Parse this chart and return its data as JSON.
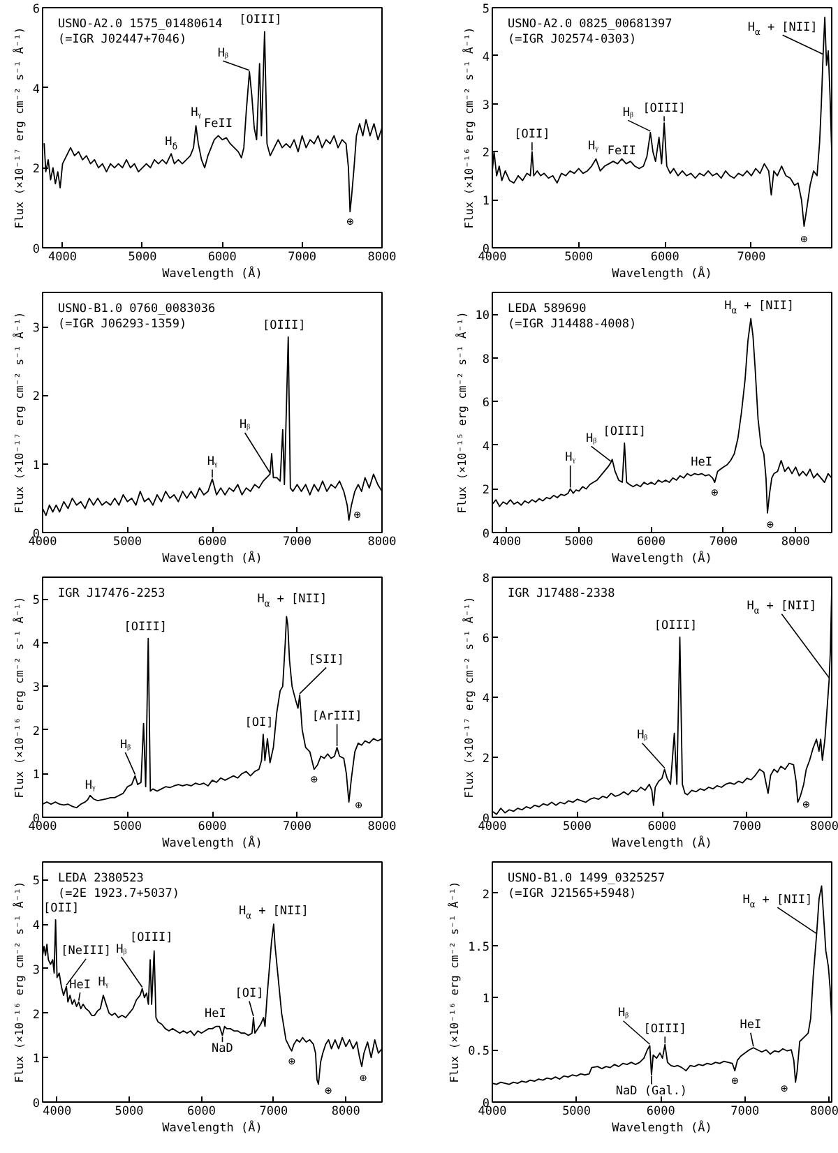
{
  "chart_data": [
    {
      "type": "line",
      "title": "USNO-A2.0 1575_01480614",
      "subtitle": "(=IGR J02447+7046)",
      "xlabel": "Wavelength (Å)",
      "ylabel": "Flux (×10⁻¹⁷ erg cm⁻² s⁻¹ Å⁻¹)",
      "xlim": [
        3750,
        8000
      ],
      "ylim": [
        0,
        6
      ],
      "xticks": [
        4000,
        5000,
        6000,
        7000,
        8000
      ],
      "yticks": [
        0,
        2,
        4,
        6
      ],
      "x": [
        3770,
        3790,
        3820,
        3850,
        3880,
        3910,
        3940,
        3970,
        4000,
        4050,
        4100,
        4150,
        4200,
        4250,
        4300,
        4350,
        4400,
        4450,
        4500,
        4550,
        4600,
        4650,
        4700,
        4750,
        4800,
        4850,
        4900,
        4950,
        5000,
        5050,
        5100,
        5150,
        5200,
        5250,
        5300,
        5360,
        5400,
        5450,
        5500,
        5550,
        5600,
        5640,
        5670,
        5700,
        5740,
        5780,
        5820,
        5860,
        5900,
        5950,
        6000,
        6050,
        6100,
        6150,
        6200,
        6240,
        6270,
        6300,
        6340,
        6370,
        6400,
        6430,
        6467,
        6490,
        6530,
        6560,
        6600,
        6650,
        6700,
        6750,
        6800,
        6850,
        6900,
        6950,
        7000,
        7050,
        7100,
        7150,
        7200,
        7250,
        7300,
        7350,
        7400,
        7450,
        7500,
        7550,
        7580,
        7600,
        7620,
        7650,
        7680,
        7720,
        7760,
        7800,
        7850,
        7900,
        7950,
        8000
      ],
      "series": [
        {
          "color": "#000000",
          "values": [
            2.6,
            1.9,
            2.2,
            1.7,
            2.0,
            1.6,
            1.9,
            1.5,
            2.1,
            2.3,
            2.5,
            2.3,
            2.4,
            2.2,
            2.3,
            2.1,
            2.2,
            2.0,
            2.1,
            1.9,
            2.1,
            2.0,
            2.1,
            2.0,
            2.2,
            2.0,
            2.1,
            1.9,
            2.0,
            2.1,
            2.0,
            2.2,
            2.1,
            2.2,
            2.1,
            2.35,
            2.1,
            2.2,
            2.1,
            2.2,
            2.3,
            2.5,
            3.05,
            2.6,
            2.2,
            2.0,
            2.3,
            2.5,
            2.7,
            2.8,
            2.7,
            2.75,
            2.6,
            2.5,
            2.4,
            2.25,
            2.5,
            3.4,
            4.4,
            3.8,
            3.0,
            2.7,
            4.6,
            2.8,
            5.4,
            2.6,
            2.3,
            2.5,
            2.7,
            2.5,
            2.6,
            2.5,
            2.7,
            2.4,
            2.8,
            2.5,
            2.7,
            2.6,
            2.8,
            2.5,
            2.7,
            2.6,
            2.8,
            2.5,
            2.7,
            2.6,
            2.0,
            0.9,
            1.3,
            2.0,
            2.8,
            3.1,
            2.8,
            3.2,
            2.8,
            3.1,
            2.7,
            3.0
          ]
        }
      ],
      "annotations": [
        {
          "text": "H$_{δ}$",
          "x": 5360,
          "y": 2.35
        },
        {
          "text": "Hᵧ",
          "x": 5670,
          "y": 3.05
        },
        {
          "text": "FeII",
          "x": 5950,
          "y": 2.8
        },
        {
          "text": "Hᵦ",
          "x": 6340,
          "y": 4.4
        },
        {
          "text": "[OIII]",
          "x": 6530,
          "y": 5.4
        },
        {
          "text": "⊕",
          "x": 7600,
          "y": 0.9
        }
      ]
    },
    {
      "type": "line",
      "title": "USNO-A2.0 0825_00681397",
      "subtitle": "(=IGR J02574-0303)",
      "xlabel": "Wavelength (Å)",
      "ylabel": "Flux (×10⁻¹⁶ erg cm⁻² s⁻¹ Å⁻¹)",
      "xlim": [
        4000,
        7930
      ],
      "ylim": [
        0,
        5
      ],
      "xticks": [
        4000,
        5000,
        6000,
        7000
      ],
      "yticks": [
        0,
        1,
        2,
        3,
        4,
        5
      ],
      "x": [
        4000,
        4020,
        4050,
        4080,
        4110,
        4150,
        4200,
        4250,
        4300,
        4350,
        4400,
        4440,
        4460,
        4480,
        4520,
        4560,
        4600,
        4650,
        4700,
        4750,
        4800,
        4850,
        4900,
        4950,
        5000,
        5050,
        5100,
        5150,
        5200,
        5250,
        5300,
        5350,
        5400,
        5450,
        5500,
        5550,
        5600,
        5650,
        5700,
        5750,
        5790,
        5830,
        5860,
        5890,
        5930,
        5960,
        5990,
        6020,
        6060,
        6100,
        6150,
        6200,
        6250,
        6300,
        6350,
        6400,
        6450,
        6500,
        6550,
        6600,
        6650,
        6700,
        6750,
        6800,
        6850,
        6900,
        6950,
        7000,
        7050,
        7100,
        7150,
        7200,
        7230,
        7260,
        7300,
        7350,
        7400,
        7450,
        7500,
        7540,
        7580,
        7610,
        7640,
        7680,
        7720,
        7760,
        7790,
        7810,
        7830,
        7850,
        7870,
        7890,
        7910,
        7930
      ],
      "series": [
        {
          "color": "#000000",
          "values": [
            1.6,
            2.0,
            1.5,
            1.7,
            1.4,
            1.6,
            1.4,
            1.35,
            1.5,
            1.4,
            1.55,
            1.5,
            2.0,
            1.5,
            1.6,
            1.5,
            1.55,
            1.45,
            1.5,
            1.35,
            1.55,
            1.5,
            1.6,
            1.55,
            1.65,
            1.55,
            1.6,
            1.7,
            1.85,
            1.6,
            1.7,
            1.75,
            1.8,
            1.75,
            1.85,
            1.75,
            1.8,
            1.7,
            1.65,
            1.7,
            1.9,
            2.4,
            2.0,
            1.8,
            2.3,
            1.75,
            2.6,
            1.7,
            1.55,
            1.65,
            1.5,
            1.6,
            1.5,
            1.55,
            1.45,
            1.55,
            1.5,
            1.6,
            1.5,
            1.55,
            1.45,
            1.6,
            1.5,
            1.45,
            1.55,
            1.5,
            1.6,
            1.5,
            1.65,
            1.55,
            1.75,
            1.6,
            1.1,
            1.6,
            1.5,
            1.7,
            1.5,
            1.45,
            1.3,
            1.35,
            1.0,
            0.45,
            0.8,
            1.3,
            1.6,
            1.5,
            2.2,
            3.0,
            4.0,
            4.8,
            3.8,
            4.1,
            3.2,
            2.0
          ]
        }
      ],
      "annotations": [
        {
          "text": "[OII]",
          "x": 4460,
          "y": 2.0
        },
        {
          "text": "Hᵧ",
          "x": 5200,
          "y": 1.85
        },
        {
          "text": "FeII",
          "x": 5450,
          "y": 1.75
        },
        {
          "text": "Hᵦ",
          "x": 5830,
          "y": 2.4
        },
        {
          "text": "[OIII]",
          "x": 5990,
          "y": 2.6
        },
        {
          "text": "H$_{α}$ + [NII]",
          "x": 7830,
          "y": 4.0
        },
        {
          "text": "⊕",
          "x": 7610,
          "y": 0.45
        }
      ]
    },
    {
      "type": "line",
      "title": "USNO-B1.0 0760_0083036",
      "subtitle": "(=IGR J06293-1359)",
      "xlabel": "Wavelength (Å)",
      "ylabel": "Flux (×10⁻¹⁷ erg cm⁻² s⁻¹ Å⁻¹)",
      "xlim": [
        4000,
        8000
      ],
      "ylim": [
        0,
        3.5
      ],
      "xticks": [
        4000,
        5000,
        6000,
        7000,
        8000
      ],
      "yticks": [
        0,
        1,
        2,
        3
      ],
      "x": [
        4000,
        4040,
        4080,
        4120,
        4160,
        4200,
        4250,
        4300,
        4350,
        4400,
        4450,
        4500,
        4550,
        4600,
        4650,
        4700,
        4750,
        4800,
        4850,
        4900,
        4950,
        5000,
        5050,
        5100,
        5150,
        5200,
        5250,
        5300,
        5350,
        5400,
        5450,
        5500,
        5550,
        5600,
        5650,
        5700,
        5750,
        5800,
        5850,
        5900,
        5950,
        6000,
        6050,
        6100,
        6150,
        6200,
        6250,
        6300,
        6350,
        6400,
        6450,
        6500,
        6550,
        6600,
        6640,
        6680,
        6700,
        6720,
        6760,
        6800,
        6830,
        6850,
        6895,
        6920,
        6950,
        7000,
        7050,
        7100,
        7150,
        7200,
        7250,
        7300,
        7350,
        7400,
        7450,
        7500,
        7550,
        7590,
        7610,
        7640,
        7680,
        7720,
        7760,
        7800,
        7850,
        7900,
        7950,
        8000
      ],
      "series": [
        {
          "color": "#000000",
          "values": [
            0.35,
            0.25,
            0.4,
            0.3,
            0.4,
            0.3,
            0.45,
            0.35,
            0.5,
            0.4,
            0.45,
            0.35,
            0.5,
            0.4,
            0.5,
            0.4,
            0.45,
            0.4,
            0.5,
            0.4,
            0.55,
            0.45,
            0.5,
            0.4,
            0.6,
            0.45,
            0.5,
            0.4,
            0.55,
            0.45,
            0.6,
            0.5,
            0.55,
            0.45,
            0.6,
            0.5,
            0.6,
            0.5,
            0.65,
            0.55,
            0.6,
            0.78,
            0.55,
            0.65,
            0.55,
            0.65,
            0.6,
            0.7,
            0.55,
            0.65,
            0.6,
            0.7,
            0.65,
            0.75,
            0.8,
            0.85,
            1.15,
            0.8,
            0.8,
            0.75,
            1.5,
            0.7,
            2.85,
            0.65,
            0.6,
            0.7,
            0.6,
            0.7,
            0.55,
            0.7,
            0.6,
            0.75,
            0.6,
            0.7,
            0.65,
            0.75,
            0.6,
            0.4,
            0.18,
            0.4,
            0.6,
            0.7,
            0.6,
            0.8,
            0.65,
            0.85,
            0.7,
            0.6
          ]
        }
      ],
      "annotations": [
        {
          "text": "Hᵧ",
          "x": 6000,
          "y": 0.78
        },
        {
          "text": "Hᵦ",
          "x": 6680,
          "y": 0.85
        },
        {
          "text": "[OIII]",
          "x": 6895,
          "y": 2.85
        },
        {
          "text": "⊕",
          "x": 7610,
          "y": 0.18
        }
      ]
    },
    {
      "type": "line",
      "title": "LEDA 589690",
      "subtitle": "(=IGR J14488-4008)",
      "xlabel": "Wavelength (Å)",
      "ylabel": "Flux (×10⁻¹⁵ erg cm⁻² s⁻¹ Å⁻¹)",
      "xlim": [
        3800,
        8500
      ],
      "ylim": [
        0,
        11
      ],
      "xticks": [
        4000,
        5000,
        6000,
        7000,
        8000
      ],
      "yticks": [
        0,
        2,
        4,
        6,
        8,
        10
      ],
      "x": [
        3800,
        3850,
        3900,
        3950,
        4000,
        4050,
        4100,
        4150,
        4200,
        4250,
        4300,
        4350,
        4400,
        4450,
        4500,
        4550,
        4600,
        4650,
        4700,
        4750,
        4800,
        4850,
        4880,
        4920,
        4960,
        5000,
        5050,
        5100,
        5150,
        5200,
        5250,
        5300,
        5350,
        5400,
        5440,
        5460,
        5500,
        5550,
        5600,
        5630,
        5660,
        5700,
        5750,
        5800,
        5850,
        5900,
        5950,
        6000,
        6050,
        6100,
        6150,
        6200,
        6250,
        6300,
        6350,
        6400,
        6450,
        6500,
        6550,
        6600,
        6650,
        6700,
        6750,
        6800,
        6850,
        6880,
        6920,
        6960,
        7000,
        7050,
        7100,
        7150,
        7200,
        7250,
        7300,
        7340,
        7380,
        7410,
        7440,
        7480,
        7520,
        7560,
        7590,
        7610,
        7640,
        7670,
        7700,
        7750,
        7800,
        7850,
        7900,
        7950,
        8000,
        8050,
        8100,
        8150,
        8200,
        8250,
        8300,
        8350,
        8400,
        8450,
        8500
      ],
      "series": [
        {
          "color": "#000000",
          "values": [
            1.3,
            1.5,
            1.2,
            1.4,
            1.3,
            1.5,
            1.3,
            1.4,
            1.25,
            1.45,
            1.35,
            1.5,
            1.4,
            1.55,
            1.45,
            1.6,
            1.55,
            1.7,
            1.6,
            1.75,
            1.7,
            1.8,
            2.0,
            1.8,
            1.95,
            1.9,
            2.1,
            2.0,
            2.2,
            2.3,
            2.4,
            2.6,
            2.8,
            3.0,
            3.2,
            3.35,
            2.8,
            2.4,
            2.3,
            4.1,
            2.3,
            2.2,
            2.1,
            2.2,
            2.1,
            2.3,
            2.2,
            2.3,
            2.2,
            2.4,
            2.3,
            2.4,
            2.3,
            2.5,
            2.4,
            2.6,
            2.5,
            2.7,
            2.6,
            2.7,
            2.65,
            2.7,
            2.6,
            2.65,
            2.5,
            2.3,
            2.8,
            2.9,
            3.0,
            3.1,
            3.3,
            3.6,
            4.3,
            5.5,
            7.0,
            8.8,
            9.8,
            9.0,
            7.5,
            5.2,
            4.0,
            3.6,
            2.5,
            0.9,
            1.8,
            2.5,
            2.7,
            2.8,
            3.3,
            2.8,
            3.0,
            2.7,
            3.0,
            2.6,
            2.8,
            2.6,
            2.9,
            2.5,
            2.7,
            2.5,
            2.3,
            2.7,
            2.5
          ]
        }
      ],
      "annotations": [
        {
          "text": "Hᵧ",
          "x": 4880,
          "y": 2.0
        },
        {
          "text": "Hᵦ",
          "x": 5440,
          "y": 3.2
        },
        {
          "text": "[OIII]",
          "x": 5630,
          "y": 4.1
        },
        {
          "text": "HeI",
          "x": 6600,
          "y": 2.7
        },
        {
          "text": "⊕",
          "x": 6880,
          "y": 2.3
        },
        {
          "text": "H$_{α}$ + [NII]",
          "x": 7380,
          "y": 9.8
        },
        {
          "text": "⊕",
          "x": 7610,
          "y": 0.9
        }
      ]
    },
    {
      "type": "line",
      "title": "IGR J17476-2253",
      "xlabel": "Wavelength (Å)",
      "ylabel": "Flux (×10⁻¹⁶ erg cm⁻² s⁻¹ Å⁻¹)",
      "xlim": [
        4000,
        8000
      ],
      "ylim": [
        0,
        5.5
      ],
      "xticks": [
        4000,
        5000,
        6000,
        7000,
        8000
      ],
      "yticks": [
        0,
        1,
        2,
        3,
        4,
        5
      ],
      "x": [
        4000,
        4050,
        4100,
        4150,
        4200,
        4250,
        4300,
        4350,
        4400,
        4450,
        4500,
        4530,
        4560,
        4600,
        4650,
        4700,
        4750,
        4800,
        4850,
        4900,
        4950,
        5000,
        5050,
        5090,
        5120,
        5160,
        5190,
        5215,
        5245,
        5270,
        5300,
        5350,
        5400,
        5450,
        5500,
        5550,
        5600,
        5650,
        5700,
        5750,
        5800,
        5850,
        5900,
        5950,
        6000,
        6050,
        6100,
        6150,
        6200,
        6250,
        6300,
        6350,
        6400,
        6450,
        6500,
        6550,
        6580,
        6600,
        6620,
        6650,
        6680,
        6720,
        6760,
        6800,
        6830,
        6860,
        6875,
        6890,
        6910,
        6940,
        6980,
        7010,
        7030,
        7060,
        7100,
        7150,
        7200,
        7240,
        7280,
        7320,
        7360,
        7400,
        7440,
        7470,
        7500,
        7550,
        7580,
        7610,
        7640,
        7680,
        7720,
        7760,
        7800,
        7850,
        7900,
        7950,
        8000
      ],
      "series": [
        {
          "color": "#000000",
          "values": [
            0.3,
            0.35,
            0.3,
            0.35,
            0.3,
            0.28,
            0.3,
            0.25,
            0.22,
            0.3,
            0.35,
            0.4,
            0.5,
            0.42,
            0.38,
            0.4,
            0.42,
            0.45,
            0.45,
            0.5,
            0.55,
            0.7,
            0.75,
            0.95,
            0.75,
            0.8,
            2.15,
            0.7,
            4.1,
            0.6,
            0.65,
            0.6,
            0.65,
            0.7,
            0.68,
            0.72,
            0.75,
            0.72,
            0.75,
            0.72,
            0.78,
            0.75,
            0.78,
            0.72,
            0.85,
            0.8,
            0.9,
            0.85,
            0.9,
            0.95,
            0.9,
            1.0,
            1.05,
            0.95,
            1.05,
            1.1,
            1.3,
            1.9,
            1.3,
            1.8,
            1.25,
            1.6,
            2.4,
            2.9,
            3.0,
            4.0,
            4.6,
            4.4,
            3.6,
            3.0,
            2.7,
            2.5,
            2.8,
            2.0,
            1.6,
            1.5,
            1.1,
            1.2,
            1.4,
            1.35,
            1.45,
            1.35,
            1.4,
            1.6,
            1.4,
            1.35,
            1.0,
            0.35,
            0.9,
            1.5,
            1.7,
            1.65,
            1.75,
            1.7,
            1.8,
            1.75,
            1.8
          ]
        }
      ],
      "annotations": [
        {
          "text": "Hᵧ",
          "x": 4560,
          "y": 0.5
        },
        {
          "text": "Hᵦ",
          "x": 5090,
          "y": 0.95
        },
        {
          "text": "[OIII]",
          "x": 5245,
          "y": 4.1
        },
        {
          "text": "[OI]",
          "x": 6600,
          "y": 1.9
        },
        {
          "text": "H$_{α}$ + [NII]",
          "x": 6875,
          "y": 4.6
        },
        {
          "text": "[SII]",
          "x": 7030,
          "y": 2.8
        },
        {
          "text": "⊕",
          "x": 7200,
          "y": 1.1
        },
        {
          "text": "[ArIII]",
          "x": 7470,
          "y": 1.6
        },
        {
          "text": "⊕",
          "x": 7610,
          "y": 0.35
        }
      ]
    },
    {
      "type": "line",
      "title": "IGR J17488-2338",
      "xlabel": "Wavelength (Å)",
      "ylabel": "Flux (×10⁻¹⁷ erg cm⁻² s⁻¹ Å⁻¹)",
      "xlim": [
        4000,
        8000
      ],
      "ylim": [
        0,
        8
      ],
      "xticks": [
        4000,
        5000,
        6000,
        7000,
        8000
      ],
      "yticks": [
        0,
        2,
        4,
        6,
        8
      ],
      "x": [
        4000,
        4050,
        4100,
        4150,
        4200,
        4250,
        4300,
        4350,
        4400,
        4450,
        4500,
        4550,
        4600,
        4650,
        4700,
        4750,
        4800,
        4850,
        4900,
        4950,
        5000,
        5050,
        5100,
        5150,
        5200,
        5250,
        5300,
        5350,
        5400,
        5450,
        5500,
        5550,
        5600,
        5650,
        5700,
        5750,
        5800,
        5850,
        5880,
        5900,
        5920,
        5960,
        6000,
        6030,
        6060,
        6100,
        6145,
        6175,
        6210,
        6240,
        6270,
        6300,
        6350,
        6400,
        6450,
        6500,
        6550,
        6600,
        6650,
        6700,
        6750,
        6800,
        6850,
        6900,
        6950,
        7000,
        7050,
        7100,
        7150,
        7200,
        7250,
        7280,
        7320,
        7360,
        7400,
        7450,
        7500,
        7550,
        7580,
        7600,
        7630,
        7670,
        7700,
        7740,
        7780,
        7820,
        7850,
        7870,
        7890,
        7920,
        7950,
        7970,
        7985,
        8000
      ],
      "series": [
        {
          "color": "#000000",
          "values": [
            0.2,
            0.1,
            0.3,
            0.15,
            0.25,
            0.2,
            0.3,
            0.25,
            0.35,
            0.3,
            0.4,
            0.35,
            0.45,
            0.4,
            0.5,
            0.4,
            0.5,
            0.45,
            0.55,
            0.5,
            0.6,
            0.55,
            0.5,
            0.6,
            0.65,
            0.6,
            0.7,
            0.65,
            0.8,
            0.7,
            0.75,
            0.85,
            0.75,
            0.9,
            0.85,
            1.0,
            0.9,
            1.1,
            0.9,
            0.4,
            1.0,
            1.2,
            1.3,
            1.6,
            1.3,
            1.1,
            2.8,
            1.1,
            6.0,
            1.1,
            0.8,
            0.75,
            0.9,
            0.85,
            0.95,
            0.9,
            1.0,
            0.95,
            1.05,
            1.0,
            1.1,
            1.15,
            1.1,
            1.2,
            1.15,
            1.3,
            1.25,
            1.4,
            1.6,
            1.5,
            0.8,
            1.4,
            1.6,
            1.5,
            1.7,
            1.6,
            1.8,
            1.75,
            1.2,
            0.5,
            0.7,
            1.1,
            1.6,
            1.9,
            2.3,
            2.6,
            2.2,
            2.6,
            1.9,
            2.6,
            3.8,
            4.6,
            5.6,
            7.6
          ]
        }
      ],
      "annotations": [
        {
          "text": "Hᵦ",
          "x": 6030,
          "y": 1.6
        },
        {
          "text": "[OIII]",
          "x": 6210,
          "y": 6.0
        },
        {
          "text": "H$_{α}$ + [NII]",
          "x": 7970,
          "y": 4.6
        },
        {
          "text": "⊕",
          "x": 7600,
          "y": 0.5
        }
      ]
    },
    {
      "type": "line",
      "title": "LEDA 2380523",
      "subtitle": "(=2E 1923.7+5037)",
      "xlabel": "Wavelength (Å)",
      "ylabel": "Flux (×10⁻¹⁶ erg cm⁻² s⁻¹ Å⁻¹)",
      "xlim": [
        3800,
        8500
      ],
      "ylim": [
        0,
        5.4
      ],
      "xticks": [
        4000,
        5000,
        6000,
        7000,
        8000
      ],
      "yticks": [
        0,
        1,
        2,
        3,
        4,
        5
      ],
      "x": [
        3800,
        3820,
        3840,
        3860,
        3880,
        3910,
        3940,
        3960,
        3980,
        4000,
        4030,
        4060,
        4090,
        4110,
        4130,
        4150,
        4180,
        4210,
        4240,
        4270,
        4300,
        4330,
        4360,
        4400,
        4440,
        4480,
        4520,
        4560,
        4600,
        4640,
        4680,
        4720,
        4760,
        4800,
        4850,
        4900,
        4950,
        5000,
        5050,
        5100,
        5150,
        5180,
        5210,
        5240,
        5265,
        5290,
        5310,
        5345,
        5370,
        5400,
        5450,
        5500,
        5550,
        5600,
        5650,
        5700,
        5750,
        5800,
        5850,
        5900,
        5950,
        6000,
        6050,
        6100,
        6150,
        6200,
        6250,
        6290,
        6320,
        6350,
        6400,
        6450,
        6500,
        6550,
        6600,
        6650,
        6700,
        6720,
        6740,
        6780,
        6820,
        6860,
        6880,
        6910,
        6940,
        6970,
        7000,
        7020,
        7050,
        7080,
        7110,
        7140,
        7170,
        7200,
        7230,
        7250,
        7280,
        7320,
        7360,
        7400,
        7450,
        7500,
        7550,
        7580,
        7600,
        7620,
        7650,
        7680,
        7720,
        7760,
        7800,
        7850,
        7900,
        7950,
        8000,
        8050,
        8100,
        8150,
        8190,
        8220,
        8250,
        8300,
        8350,
        8400,
        8450,
        8500
      ],
      "series": [
        {
          "color": "#000000",
          "values": [
            3.3,
            3.5,
            3.3,
            3.55,
            3.2,
            3.1,
            3.2,
            2.9,
            4.1,
            2.8,
            2.9,
            2.6,
            2.4,
            2.5,
            2.6,
            2.25,
            2.4,
            2.2,
            2.3,
            2.15,
            2.25,
            2.1,
            2.2,
            2.1,
            2.05,
            1.95,
            1.95,
            2.05,
            2.1,
            2.4,
            2.2,
            2.0,
            1.95,
            2.0,
            1.9,
            1.95,
            1.9,
            2.0,
            2.1,
            2.3,
            2.4,
            2.55,
            2.35,
            2.45,
            2.2,
            3.2,
            2.2,
            3.4,
            1.9,
            1.8,
            1.75,
            1.65,
            1.6,
            1.65,
            1.6,
            1.55,
            1.6,
            1.55,
            1.6,
            1.5,
            1.6,
            1.55,
            1.6,
            1.65,
            1.65,
            1.7,
            1.7,
            1.5,
            1.7,
            1.65,
            1.65,
            1.6,
            1.6,
            1.55,
            1.55,
            1.5,
            1.55,
            1.9,
            1.55,
            1.65,
            1.75,
            1.9,
            1.7,
            2.4,
            3.0,
            3.6,
            4.0,
            3.5,
            3.0,
            2.5,
            2.0,
            1.7,
            1.4,
            1.3,
            1.2,
            1.15,
            1.3,
            1.4,
            1.35,
            1.45,
            1.35,
            1.4,
            1.3,
            1.1,
            0.5,
            0.4,
            0.9,
            1.1,
            1.3,
            1.4,
            1.2,
            1.4,
            1.2,
            1.45,
            1.25,
            1.4,
            1.2,
            1.35,
            1.0,
            0.8,
            1.1,
            1.35,
            1.0,
            1.4,
            1.1,
            1.2
          ]
        }
      ],
      "annotations": [
        {
          "text": "[OII]",
          "x": 3980,
          "y": 4.1
        },
        {
          "text": "[NeIII]",
          "x": 4130,
          "y": 2.6
        },
        {
          "text": "HeI",
          "x": 4300,
          "y": 2.25
        },
        {
          "text": "Hᵧ",
          "x": 4640,
          "y": 2.4
        },
        {
          "text": "Hᵦ",
          "x": 5180,
          "y": 2.55
        },
        {
          "text": "[OIII]",
          "x": 5345,
          "y": 3.4
        },
        {
          "text": "HeI",
          "x": 6250,
          "y": 1.7
        },
        {
          "text": "NaD",
          "x": 6290,
          "y": 1.5
        },
        {
          "text": "[OI]",
          "x": 6720,
          "y": 1.9
        },
        {
          "text": "H$_{α}$ + [NII]",
          "x": 7000,
          "y": 4.0
        },
        {
          "text": "⊕",
          "x": 7250,
          "y": 1.15
        },
        {
          "text": "⊕",
          "x": 7620,
          "y": 0.4
        },
        {
          "text": "⊕",
          "x": 8220,
          "y": 0.8
        }
      ]
    },
    {
      "type": "line",
      "title": "USNO-B1.0 1499_0325257",
      "subtitle": "(=IGR J21565+5948)",
      "xlabel": "Wavelength (Å)",
      "ylabel": "Flux (×10⁻¹⁶ erg cm⁻² s⁻¹ Å⁻¹)",
      "xlim": [
        4000,
        8030
      ],
      "ylim": [
        0,
        2.3
      ],
      "xticks": [
        4000,
        5000,
        6000,
        7000,
        8000
      ],
      "yticks": [
        0,
        0.5,
        1,
        1.5,
        2
      ],
      "x": [
        4000,
        4050,
        4100,
        4150,
        4200,
        4250,
        4300,
        4350,
        4400,
        4450,
        4500,
        4550,
        4600,
        4650,
        4700,
        4750,
        4800,
        4850,
        4900,
        4950,
        5000,
        5050,
        5100,
        5150,
        5180,
        5250,
        5300,
        5350,
        5400,
        5450,
        5500,
        5550,
        5600,
        5650,
        5700,
        5750,
        5800,
        5840,
        5870,
        5890,
        5910,
        5950,
        5990,
        6020,
        6050,
        6080,
        6120,
        6160,
        6200,
        6250,
        6300,
        6350,
        6400,
        6450,
        6500,
        6550,
        6600,
        6650,
        6700,
        6750,
        6800,
        6850,
        6880,
        6910,
        6950,
        7000,
        7050,
        7100,
        7150,
        7200,
        7250,
        7300,
        7350,
        7400,
        7450,
        7500,
        7550,
        7580,
        7600,
        7620,
        7650,
        7700,
        7750,
        7780,
        7810,
        7850,
        7880,
        7910,
        7940,
        7960,
        7990,
        8010,
        8030
      ],
      "series": [
        {
          "color": "#000000",
          "values": [
            0.18,
            0.17,
            0.19,
            0.18,
            0.17,
            0.19,
            0.18,
            0.2,
            0.19,
            0.21,
            0.2,
            0.22,
            0.21,
            0.23,
            0.22,
            0.24,
            0.22,
            0.25,
            0.24,
            0.26,
            0.25,
            0.27,
            0.26,
            0.27,
            0.33,
            0.34,
            0.32,
            0.34,
            0.33,
            0.36,
            0.34,
            0.37,
            0.36,
            0.38,
            0.36,
            0.38,
            0.42,
            0.5,
            0.54,
            0.26,
            0.45,
            0.42,
            0.47,
            0.42,
            0.55,
            0.38,
            0.35,
            0.34,
            0.35,
            0.33,
            0.3,
            0.35,
            0.34,
            0.36,
            0.35,
            0.37,
            0.36,
            0.38,
            0.37,
            0.39,
            0.38,
            0.37,
            0.3,
            0.4,
            0.44,
            0.47,
            0.5,
            0.52,
            0.5,
            0.48,
            0.5,
            0.46,
            0.49,
            0.48,
            0.51,
            0.49,
            0.5,
            0.4,
            0.19,
            0.3,
            0.58,
            0.62,
            0.66,
            0.8,
            1.2,
            1.6,
            1.95,
            2.07,
            1.7,
            1.45,
            1.3,
            1.1,
            0.8
          ]
        }
      ],
      "annotations": [
        {
          "text": "Hᵦ",
          "x": 5870,
          "y": 0.54
        },
        {
          "text": "NaD (Gal.)",
          "x": 5890,
          "y": 0.26
        },
        {
          "text": "[OIII]",
          "x": 6050,
          "y": 0.55
        },
        {
          "text": "⊕",
          "x": 6880,
          "y": 0.3
        },
        {
          "text": "HeI",
          "x": 7100,
          "y": 0.52
        },
        {
          "text": "⊕",
          "x": 7600,
          "y": 0.19
        },
        {
          "text": "H$_{α}$ + [NII]",
          "x": 7850,
          "y": 1.6
        }
      ]
    }
  ]
}
